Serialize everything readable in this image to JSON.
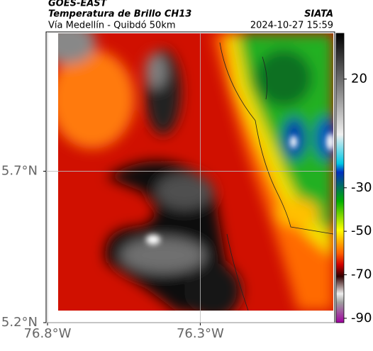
{
  "header": {
    "source": "GOES-EAST",
    "title": "Temperatura de Brillo CH13",
    "agency": "SIATA",
    "subtitle": "Vía Medellín - Quibdó 50km",
    "datetime": "2024-10-27 15:59"
  },
  "map": {
    "xlim": [
      -76.8,
      -75.86
    ],
    "ylim": [
      5.2,
      6.16
    ],
    "xticks": [
      {
        "value": -76.8,
        "label": "76.8°W"
      },
      {
        "value": -76.3,
        "label": "76.3°W"
      }
    ],
    "yticks": [
      {
        "value": 5.2,
        "label": "5.2°N"
      },
      {
        "value": 5.7,
        "label": "5.7°N"
      }
    ]
  },
  "colorbar": {
    "lim": [
      -92,
      41
    ],
    "ticks": [
      20,
      -30,
      -50,
      -70,
      -90
    ]
  }
}
